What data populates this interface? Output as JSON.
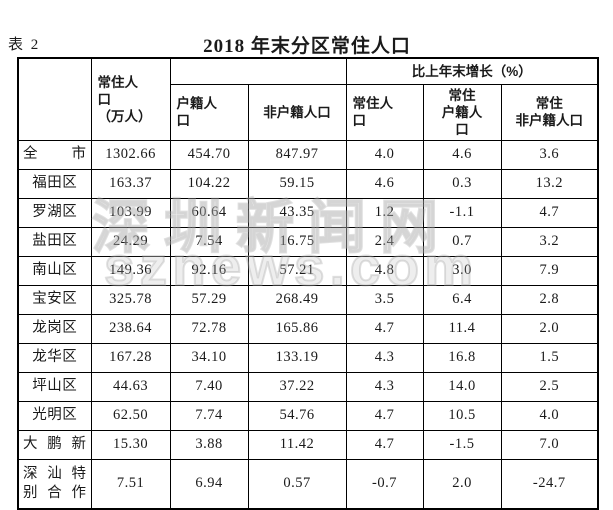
{
  "page": {
    "table_label": "表 2",
    "title": "2018 年末分区常住人口"
  },
  "table": {
    "header": {
      "resident": "常住人\n口\n（万人）",
      "hukou": "户籍人\n口",
      "non_hukou": "非户籍人口",
      "growth_group": "比上年末增长（%）",
      "g_resident": "常住人\n口",
      "g_hukou": "常住\n户籍人\n口",
      "g_non_hukou": "常住\n非户籍人口"
    },
    "rows": [
      {
        "district": "全市",
        "justify": true,
        "resident": "1302.66",
        "hukou": "454.70",
        "non_hukou": "847.97",
        "g_resident": "4.0",
        "g_hukou": "4.6",
        "g_non_hukou": "3.6"
      },
      {
        "district": "福田区",
        "resident": "163.37",
        "hukou": "104.22",
        "non_hukou": "59.15",
        "g_resident": "4.6",
        "g_hukou": "0.3",
        "g_non_hukou": "13.2"
      },
      {
        "district": "罗湖区",
        "resident": "103.99",
        "hukou": "60.64",
        "non_hukou": "43.35",
        "g_resident": "1.2",
        "g_hukou": "-1.1",
        "g_non_hukou": "4.7"
      },
      {
        "district": "盐田区",
        "resident": "24.29",
        "hukou": "7.54",
        "non_hukou": "16.75",
        "g_resident": "2.4",
        "g_hukou": "0.7",
        "g_non_hukou": "3.2"
      },
      {
        "district": "南山区",
        "resident": "149.36",
        "hukou": "92.16",
        "non_hukou": "57.21",
        "g_resident": "4.8",
        "g_hukou": "3.0",
        "g_non_hukou": "7.9"
      },
      {
        "district": "宝安区",
        "resident": "325.78",
        "hukou": "57.29",
        "non_hukou": "268.49",
        "g_resident": "3.5",
        "g_hukou": "6.4",
        "g_non_hukou": "2.8"
      },
      {
        "district": "龙岗区",
        "resident": "238.64",
        "hukou": "72.78",
        "non_hukou": "165.86",
        "g_resident": "4.7",
        "g_hukou": "11.4",
        "g_non_hukou": "2.0"
      },
      {
        "district": "龙华区",
        "resident": "167.28",
        "hukou": "34.10",
        "non_hukou": "133.19",
        "g_resident": "4.3",
        "g_hukou": "16.8",
        "g_non_hukou": "1.5"
      },
      {
        "district": "坪山区",
        "resident": "44.63",
        "hukou": "7.40",
        "non_hukou": "37.22",
        "g_resident": "4.3",
        "g_hukou": "14.0",
        "g_non_hukou": "2.5"
      },
      {
        "district": "光明区",
        "resident": "62.50",
        "hukou": "7.74",
        "non_hukou": "54.76",
        "g_resident": "4.7",
        "g_hukou": "10.5",
        "g_non_hukou": "4.0"
      },
      {
        "district": "大鹏新",
        "justify": true,
        "resident": "15.30",
        "hukou": "3.88",
        "non_hukou": "11.42",
        "g_resident": "4.7",
        "g_hukou": "-1.5",
        "g_non_hukou": "7.0"
      },
      {
        "district": "深汕特\n别合作",
        "justify": true,
        "tall": true,
        "resident": "7.51",
        "hukou": "6.94",
        "non_hukou": "0.57",
        "g_resident": "-0.7",
        "g_hukou": "2.0",
        "g_non_hukou": "-24.7"
      }
    ]
  },
  "watermark": {
    "line1": "深圳新闻网",
    "line2": "sznews.com"
  },
  "colors": {
    "background": "#ffffff",
    "text": "#1a1a1a",
    "border": "#000000",
    "watermark": "#b2b2b2"
  }
}
